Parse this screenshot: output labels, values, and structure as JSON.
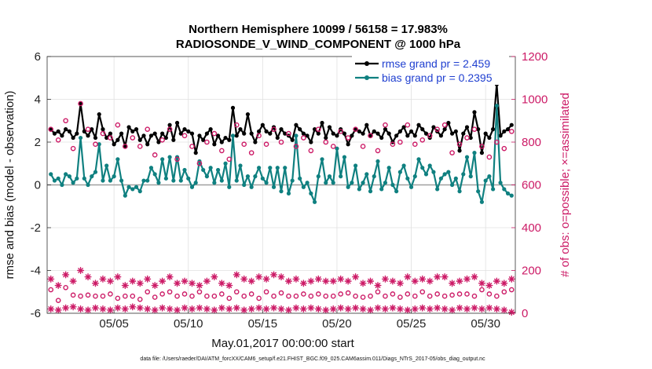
{
  "chart_data": {
    "type": "line",
    "title": "Northern Hemisphere 10099 / 56158 = 17.983%",
    "subtitle": "RADIOSONDE_V_WIND_COMPONENT @ 1000 hPa",
    "xlabel": "May.01,2017 00:00:00 start",
    "ylabel": "rmse and bias (model - observation)",
    "ylabel_right": "# of obs: o=possible; ×=assimilated",
    "footnote": "data file: /Users/raeder/DAI/ATM_forcXX/CAM6_setup/f.e21.FHIST_BGC.f09_025.CAM6assim.011/Diags_NTrS_2017-05/obs_diag_output.nc",
    "xlim": [
      0.5,
      32.0
    ],
    "ylim": [
      -6,
      6
    ],
    "ylim_right": [
      0,
      1200
    ],
    "x_ticks": [
      5,
      10,
      15,
      20,
      25,
      30
    ],
    "x_tick_labels": [
      "05/05",
      "05/10",
      "05/15",
      "05/20",
      "05/25",
      "05/30"
    ],
    "y_ticks": [
      -6,
      -4,
      -2,
      0,
      2,
      4,
      6
    ],
    "y_tick_labels": [
      "-6",
      "-4",
      "-2",
      "0",
      "2",
      "4",
      "6"
    ],
    "y_ticks_right": [
      0,
      200,
      400,
      600,
      800,
      1000,
      1200
    ],
    "y_tick_labels_right": [
      "0",
      "200",
      "400",
      "600",
      "800",
      "1000",
      "1200"
    ],
    "grid": true,
    "legend_position": "top-right",
    "colors": {
      "rmse": "#000000",
      "bias": "#0f8080",
      "obs": "#cc1a66",
      "zero_line": "#a0a0a0",
      "grid": "#e0e0e0"
    },
    "series": [
      {
        "name": "rmse grand pr = 2.459",
        "axis": "left",
        "marker": "filled-circle",
        "x": [
          0.75,
          1.0,
          1.25,
          1.5,
          1.75,
          2.0,
          2.25,
          2.5,
          2.75,
          3.0,
          3.25,
          3.5,
          3.75,
          4.0,
          4.25,
          4.5,
          4.75,
          5.0,
          5.25,
          5.5,
          5.75,
          6.0,
          6.25,
          6.5,
          6.75,
          7.0,
          7.25,
          7.5,
          7.75,
          8.0,
          8.25,
          8.5,
          8.75,
          9.0,
          9.25,
          9.5,
          9.75,
          10.0,
          10.25,
          10.5,
          10.75,
          11.0,
          11.25,
          11.5,
          11.75,
          12.0,
          12.25,
          12.5,
          12.75,
          13.0,
          13.25,
          13.5,
          13.75,
          14.0,
          14.25,
          14.5,
          14.75,
          15.0,
          15.25,
          15.5,
          15.75,
          16.0,
          16.25,
          16.5,
          16.75,
          17.0,
          17.25,
          17.5,
          17.75,
          18.0,
          18.25,
          18.5,
          18.75,
          19.0,
          19.25,
          19.5,
          19.75,
          20.0,
          20.25,
          20.5,
          20.75,
          21.0,
          21.25,
          21.5,
          21.75,
          22.0,
          22.25,
          22.5,
          22.75,
          23.0,
          23.25,
          23.5,
          23.75,
          24.0,
          24.25,
          24.5,
          24.75,
          25.0,
          25.25,
          25.5,
          25.75,
          26.0,
          26.25,
          26.5,
          26.75,
          27.0,
          27.25,
          27.5,
          27.75,
          28.0,
          28.25,
          28.5,
          28.75,
          29.0,
          29.25,
          29.5,
          29.75,
          30.0,
          30.25,
          30.5,
          30.75,
          31.0,
          31.25,
          31.5,
          31.75
        ],
        "values": [
          2.6,
          2.4,
          2.5,
          2.3,
          2.6,
          2.5,
          2.2,
          2.4,
          3.8,
          2.5,
          2.3,
          2.6,
          2.2,
          3.3,
          2.6,
          2.2,
          2.4,
          1.9,
          2.1,
          2.4,
          1.8,
          2.7,
          2.5,
          2.6,
          2.1,
          2.3,
          1.9,
          2.3,
          2.4,
          2.0,
          2.4,
          2.2,
          2.8,
          2.1,
          2.9,
          2.4,
          2.6,
          2.5,
          2.4,
          1.5,
          2.3,
          2.1,
          2.4,
          2.6,
          1.9,
          2.3,
          2.0,
          2.2,
          2.1,
          3.6,
          2.3,
          2.6,
          2.4,
          3.3,
          2.4,
          2.0,
          2.5,
          2.8,
          2.5,
          2.4,
          2.7,
          2.2,
          2.6,
          2.4,
          2.3,
          2.1,
          2.8,
          2.6,
          2.4,
          2.3,
          2.0,
          2.6,
          2.4,
          2.9,
          2.2,
          2.7,
          2.4,
          2.3,
          2.6,
          2.4,
          1.9,
          2.3,
          2.6,
          2.5,
          2.4,
          2.8,
          2.3,
          2.5,
          2.4,
          2.2,
          2.6,
          2.4,
          2.0,
          2.3,
          2.5,
          2.7,
          2.3,
          2.5,
          2.3,
          2.8,
          2.6,
          2.4,
          2.2,
          2.7,
          2.5,
          2.3,
          2.6,
          2.9,
          2.4,
          2.5,
          1.6,
          2.4,
          2.7,
          2.2,
          3.4,
          2.6,
          1.5,
          2.4,
          2.2,
          2.6,
          4.7,
          2.3,
          2.5,
          2.6,
          2.8
        ],
        "color": "#000000"
      },
      {
        "name": "bias grand pr = 0.2395",
        "axis": "left",
        "marker": "filled-circle",
        "x": [
          0.75,
          1.0,
          1.25,
          1.5,
          1.75,
          2.0,
          2.25,
          2.5,
          2.75,
          3.0,
          3.25,
          3.5,
          3.75,
          4.0,
          4.25,
          4.5,
          4.75,
          5.0,
          5.25,
          5.5,
          5.75,
          6.0,
          6.25,
          6.5,
          6.75,
          7.0,
          7.25,
          7.5,
          7.75,
          8.0,
          8.25,
          8.5,
          8.75,
          9.0,
          9.25,
          9.5,
          9.75,
          10.0,
          10.25,
          10.5,
          10.75,
          11.0,
          11.25,
          11.5,
          11.75,
          12.0,
          12.25,
          12.5,
          12.75,
          13.0,
          13.25,
          13.5,
          13.75,
          14.0,
          14.25,
          14.5,
          14.75,
          15.0,
          15.25,
          15.5,
          15.75,
          16.0,
          16.25,
          16.5,
          16.75,
          17.0,
          17.25,
          17.5,
          17.75,
          18.0,
          18.25,
          18.5,
          18.75,
          19.0,
          19.25,
          19.5,
          19.75,
          20.0,
          20.25,
          20.5,
          20.75,
          21.0,
          21.25,
          21.5,
          21.75,
          22.0,
          22.25,
          22.5,
          22.75,
          23.0,
          23.25,
          23.5,
          23.75,
          24.0,
          24.25,
          24.5,
          24.75,
          25.0,
          25.25,
          25.5,
          25.75,
          26.0,
          26.25,
          26.5,
          26.75,
          27.0,
          27.25,
          27.5,
          27.75,
          28.0,
          28.25,
          28.5,
          28.75,
          29.0,
          29.25,
          29.5,
          29.75,
          30.0,
          30.25,
          30.5,
          30.75,
          31.0,
          31.25,
          31.5,
          31.75
        ],
        "values": [
          0.5,
          0.2,
          0.3,
          0.0,
          0.5,
          0.4,
          0.1,
          0.3,
          2.2,
          0.3,
          0.0,
          0.4,
          0.6,
          1.9,
          0.2,
          0.9,
          0.2,
          0.4,
          1.2,
          0.2,
          -0.5,
          -0.1,
          -0.2,
          -0.1,
          -0.3,
          0.2,
          0.2,
          0.8,
          0.5,
          0.1,
          1.2,
          0.3,
          1.3,
          0.2,
          1.3,
          0.2,
          0.7,
          0.3,
          -0.1,
          0.1,
          1.1,
          0.7,
          0.4,
          0.8,
          0.1,
          0.7,
          0.2,
          1.0,
          -0.1,
          2.3,
          0.2,
          0.9,
          0.0,
          0.4,
          -0.1,
          0.4,
          0.8,
          0.3,
          0.1,
          0.8,
          -0.1,
          0.8,
          -0.3,
          0.8,
          -0.4,
          0.2,
          2.3,
          0.3,
          -0.1,
          0.1,
          -0.4,
          -0.8,
          0.4,
          1.2,
          0.1,
          0.4,
          0.1,
          1.7,
          0.4,
          1.3,
          -0.1,
          0.1,
          0.9,
          -0.2,
          0.1,
          0.5,
          -0.3,
          0.4,
          1.1,
          -0.2,
          0.1,
          0.8,
          0.0,
          -0.3,
          0.6,
          0.9,
          0.3,
          -0.1,
          0.4,
          1.2,
          0.8,
          0.5,
          0.9,
          0.6,
          -0.2,
          0.3,
          0.5,
          0.6,
          0.0,
          0.3,
          -0.3,
          0.5,
          1.3,
          0.4,
          1.5,
          -0.3,
          -0.8,
          0.2,
          0.4,
          -0.2,
          3.7,
          0.1,
          -0.2,
          -0.4,
          -0.5
        ],
        "color": "#0f8080"
      },
      {
        "name": "possible",
        "axis": "right",
        "marker": "open-circle",
        "x": [
          0.75,
          1.25,
          1.75,
          2.25,
          2.75,
          3.25,
          3.75,
          4.25,
          4.75,
          5.25,
          5.75,
          6.25,
          6.75,
          7.25,
          7.75,
          8.25,
          8.75,
          9.25,
          9.75,
          10.25,
          10.75,
          11.25,
          11.75,
          12.25,
          12.75,
          13.25,
          13.75,
          14.25,
          14.75,
          15.25,
          15.75,
          16.25,
          16.75,
          17.25,
          17.75,
          18.25,
          18.75,
          19.25,
          19.75,
          20.25,
          20.75,
          21.25,
          21.75,
          22.25,
          22.75,
          23.25,
          23.75,
          24.25,
          24.75,
          25.25,
          25.75,
          26.25,
          26.75,
          27.25,
          27.75,
          28.25,
          28.75,
          29.25,
          29.75,
          30.25,
          30.75,
          31.25,
          31.75
        ],
        "values": [
          860,
          810,
          900,
          770,
          980,
          860,
          790,
          840,
          820,
          880,
          780,
          820,
          780,
          860,
          740,
          810,
          860,
          720,
          830,
          780,
          700,
          800,
          840,
          760,
          720,
          880,
          790,
          750,
          830,
          790,
          860,
          800,
          840,
          780,
          820,
          760,
          860,
          800,
          780,
          850,
          820,
          860,
          780,
          830,
          760,
          880,
          790,
          800,
          880,
          790,
          810,
          830,
          860,
          880,
          750,
          790,
          820,
          860,
          780,
          730,
          800,
          770,
          850
        ],
        "color": "#cc1a66"
      },
      {
        "name": "possible-low",
        "axis": "right",
        "marker": "open-circle",
        "x": [
          0.75,
          1.25,
          1.75,
          2.25,
          2.75,
          3.25,
          3.75,
          4.25,
          4.75,
          5.25,
          5.75,
          6.25,
          6.75,
          7.25,
          7.75,
          8.25,
          8.75,
          9.25,
          9.75,
          10.25,
          10.75,
          11.25,
          11.75,
          12.25,
          12.75,
          13.25,
          13.75,
          14.25,
          14.75,
          15.25,
          15.75,
          16.25,
          16.75,
          17.25,
          17.75,
          18.25,
          18.75,
          19.25,
          19.75,
          20.25,
          20.75,
          21.25,
          21.75,
          22.25,
          22.75,
          23.25,
          23.75,
          24.25,
          24.75,
          25.25,
          25.75,
          26.25,
          26.75,
          27.25,
          27.75,
          28.25,
          28.75,
          29.25,
          29.75,
          30.25,
          30.75,
          31.25,
          31.75
        ],
        "values": [
          110,
          60,
          120,
          85,
          80,
          85,
          80,
          80,
          90,
          70,
          80,
          80,
          65,
          100,
          75,
          90,
          100,
          80,
          90,
          80,
          100,
          80,
          80,
          90,
          70,
          100,
          80,
          90,
          70,
          100,
          80,
          95,
          80,
          80,
          90,
          80,
          90,
          80,
          80,
          90,
          95,
          80,
          75,
          80,
          100,
          80,
          90,
          75,
          90,
          80,
          100,
          80,
          90,
          80,
          85,
          90,
          90,
          80,
          110,
          90,
          80,
          100,
          110
        ],
        "color": "#cc1a66"
      },
      {
        "name": "assimilated",
        "axis": "right",
        "marker": "asterisk",
        "x": [
          0.75,
          1.25,
          1.75,
          2.25,
          2.75,
          3.25,
          3.75,
          4.25,
          4.75,
          5.25,
          5.75,
          6.25,
          6.75,
          7.25,
          7.75,
          8.25,
          8.75,
          9.25,
          9.75,
          10.25,
          10.75,
          11.25,
          11.75,
          12.25,
          12.75,
          13.25,
          13.75,
          14.25,
          14.75,
          15.25,
          15.75,
          16.25,
          16.75,
          17.25,
          17.75,
          18.25,
          18.75,
          19.25,
          19.75,
          20.25,
          20.75,
          21.25,
          21.75,
          22.25,
          22.75,
          23.25,
          23.75,
          24.25,
          24.75,
          25.25,
          25.75,
          26.25,
          26.75,
          27.25,
          27.75,
          28.25,
          28.75,
          29.25,
          29.75,
          30.25,
          30.75,
          31.25,
          31.75
        ],
        "values": [
          160,
          130,
          180,
          150,
          200,
          170,
          140,
          160,
          150,
          170,
          130,
          150,
          140,
          160,
          130,
          150,
          170,
          140,
          150,
          140,
          130,
          150,
          170,
          140,
          130,
          180,
          160,
          150,
          170,
          160,
          180,
          170,
          150,
          160,
          140,
          150,
          160,
          150,
          150,
          160,
          150,
          170,
          140,
          150,
          130,
          160,
          150,
          140,
          170,
          150,
          160,
          150,
          170,
          170,
          140,
          150,
          160,
          170,
          140,
          130,
          150,
          140,
          160
        ],
        "color": "#cc1a66"
      },
      {
        "name": "assimilated-low",
        "axis": "right",
        "marker": "asterisk",
        "x": [
          0.75,
          1.25,
          1.75,
          2.25,
          2.75,
          3.25,
          3.75,
          4.25,
          4.75,
          5.25,
          5.75,
          6.25,
          6.75,
          7.25,
          7.75,
          8.25,
          8.75,
          9.25,
          9.75,
          10.25,
          10.75,
          11.25,
          11.75,
          12.25,
          12.75,
          13.25,
          13.75,
          14.25,
          14.75,
          15.25,
          15.75,
          16.25,
          16.75,
          17.25,
          17.75,
          18.25,
          18.75,
          19.25,
          19.75,
          20.25,
          20.75,
          21.25,
          21.75,
          22.25,
          22.75,
          23.25,
          23.75,
          24.25,
          24.75,
          25.25,
          25.75,
          26.25,
          26.75,
          27.25,
          27.75,
          28.25,
          28.75,
          29.25,
          29.75,
          30.25,
          30.75,
          31.25,
          31.75
        ],
        "values": [
          20,
          15,
          25,
          30,
          20,
          15,
          25,
          20,
          15,
          25,
          20,
          30,
          25,
          20,
          15,
          25,
          20,
          15,
          25,
          20,
          25,
          20,
          15,
          25,
          20,
          25,
          15,
          20,
          25,
          20,
          25,
          20,
          15,
          25,
          20,
          25,
          20,
          15,
          20,
          25,
          20,
          25,
          20,
          15,
          25,
          20,
          25,
          20,
          15,
          20,
          25,
          20,
          25,
          20,
          15,
          25,
          20,
          25,
          20,
          25,
          20,
          15,
          5
        ],
        "color": "#cc1a66"
      }
    ]
  }
}
